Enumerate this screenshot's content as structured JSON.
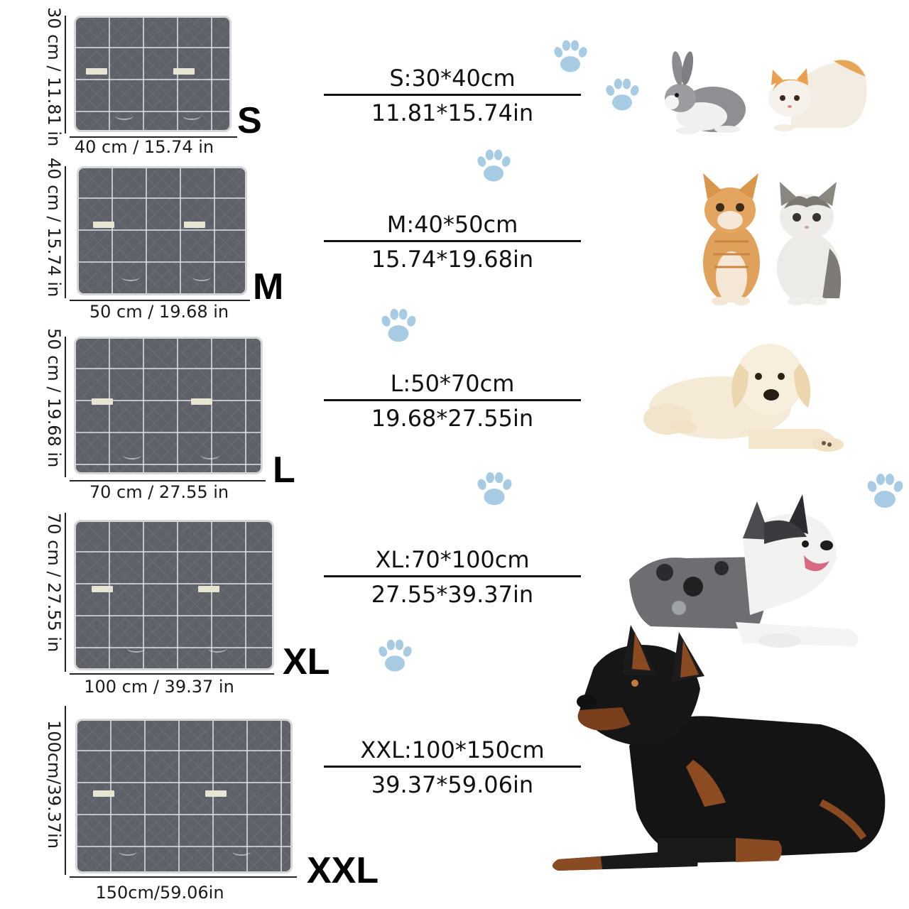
{
  "colors": {
    "mat": "#5e6168",
    "mat_grid": "#e1e4eb",
    "paw": "#a8cbe4",
    "text": "#111111"
  },
  "sizes": [
    {
      "letter": "S",
      "height_label": "30 cm / 11.81 in",
      "width_label": "40 cm / 15.74 in",
      "spec_cm": "S:30*40cm",
      "spec_in": "11.81*15.74in",
      "pets": [
        "rabbit",
        "kitten"
      ]
    },
    {
      "letter": "M",
      "height_label": "40 cm / 15.74 in",
      "width_label": "50 cm / 19.68 in",
      "spec_cm": "M:40*50cm",
      "spec_in": "15.74*19.68in",
      "pets": [
        "orange-tabby-cat",
        "grey-white-cat"
      ]
    },
    {
      "letter": "L",
      "height_label": "50 cm / 19.68 in",
      "width_label": "70 cm / 27.55 in",
      "spec_cm": "L:50*70cm",
      "spec_in": "19.68*27.55in",
      "pets": [
        "labrador-puppy"
      ]
    },
    {
      "letter": "XL",
      "height_label": "70 cm / 27.55 in",
      "width_label": "100 cm / 39.37 in",
      "spec_cm": "XL:70*100cm",
      "spec_in": "27.55*39.37in",
      "pets": [
        "merle-collie"
      ]
    },
    {
      "letter": "XXL",
      "height_label": "100cm/39.37in",
      "width_label": "150cm/59.06in",
      "spec_cm": "XXL:100*150cm",
      "spec_in": "39.37*59.06in",
      "pets": [
        "doberman"
      ]
    }
  ],
  "icons": [
    "paw-print-icon"
  ]
}
